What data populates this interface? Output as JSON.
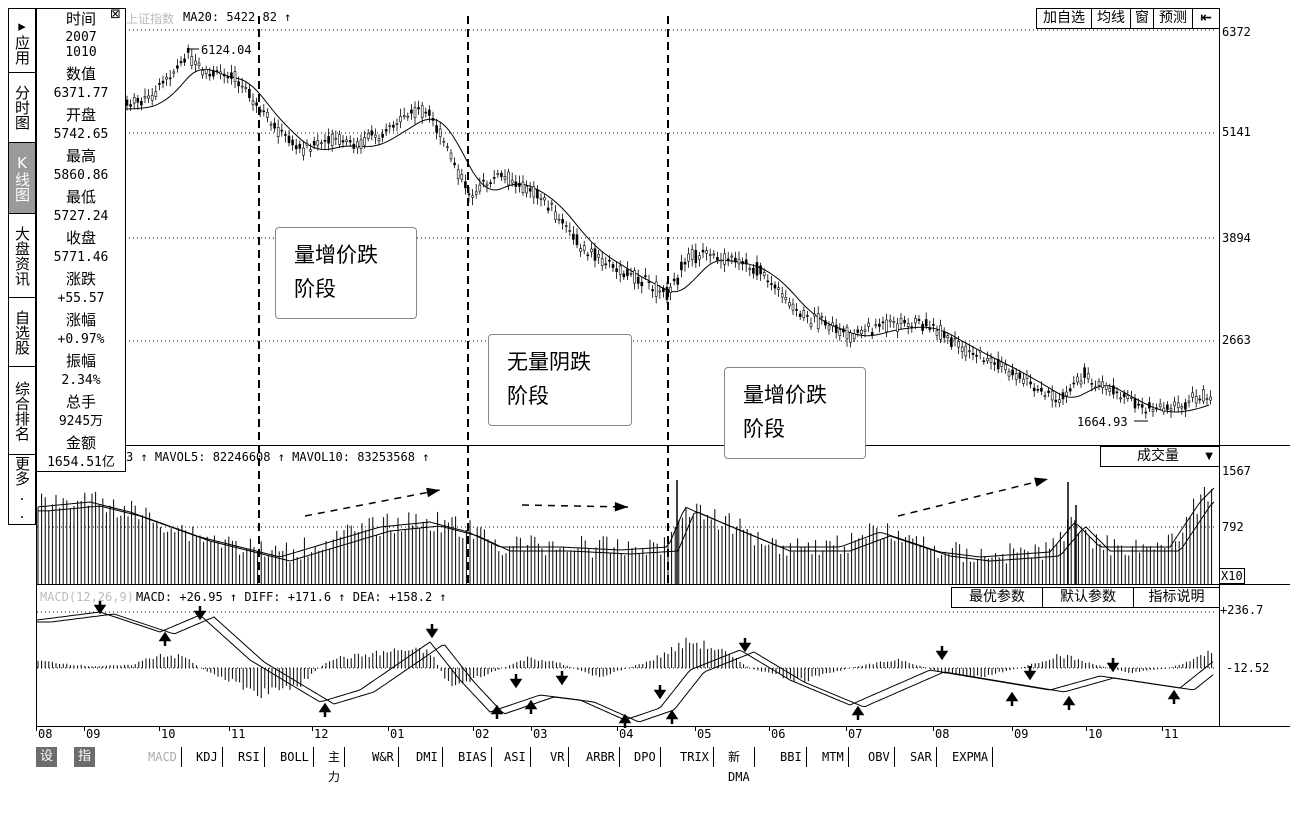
{
  "sidebar": {
    "items": [
      {
        "label": "▸应用",
        "active": false
      },
      {
        "label": "分时图",
        "active": false
      },
      {
        "label": "K线图",
        "active": true
      },
      {
        "label": "大盘资讯",
        "active": false
      },
      {
        "label": "自选股",
        "active": false
      },
      {
        "label": "综合排名",
        "active": false
      },
      {
        "label": "更多..",
        "active": false
      }
    ]
  },
  "info_panel": {
    "close_glyph": "⊠",
    "rows": [
      {
        "label": "时间",
        "value": "2007 1010"
      },
      {
        "label": "数值",
        "value": "6371.77"
      },
      {
        "label": "开盘",
        "value": "5742.65"
      },
      {
        "label": "最高",
        "value": "5860.86"
      },
      {
        "label": "最低",
        "value": "5727.24"
      },
      {
        "label": "收盘",
        "value": "5771.46"
      },
      {
        "label": "涨跌",
        "value": "+55.57"
      },
      {
        "label": "涨幅",
        "value": "+0.97%"
      },
      {
        "label": "振幅",
        "value": "2.34%"
      },
      {
        "label": "总手",
        "value": "9245万"
      },
      {
        "label": "金额",
        "value": "1654.51亿"
      }
    ]
  },
  "header": {
    "index_name": "上证指数",
    "ma_text": "MA20: 5422.82 ↑",
    "buttons": [
      "加自选",
      "均线",
      "窗",
      "预测",
      "⇤"
    ]
  },
  "price_axis": [
    "6372",
    "5141",
    "3894",
    "2663"
  ],
  "price_annotations": {
    "high": "6124.04",
    "low": "1664.93"
  },
  "notes": [
    {
      "line1": "量增价跌",
      "line2": "阶段"
    },
    {
      "line1": "无量阴跌",
      "line2": "阶段"
    },
    {
      "line1": "量增价跌",
      "line2": "阶段"
    }
  ],
  "volume": {
    "caption": "3 ↑  MAVOL5: 82246608 ↑  MAVOL10: 83253568 ↑",
    "selector": "成交量",
    "selector_arrow": "▼",
    "axis": [
      "1567",
      "792"
    ],
    "unit": "X10"
  },
  "macd": {
    "title": "MACD(12,26,9)",
    "caption": "MACD: +26.95 ↑  DIFF: +171.6 ↑  DEA: +158.2 ↑",
    "buttons": [
      "最优参数",
      "默认参数",
      "指标说明"
    ],
    "axis": [
      "+236.7",
      "-12.52"
    ]
  },
  "months": [
    "08",
    "09",
    "10",
    "11",
    "12",
    "01",
    "02",
    "03",
    "04",
    "05",
    "06",
    "07",
    "08",
    "09",
    "10",
    "11"
  ],
  "tabs": [
    "设置",
    "指标平台",
    "MACD",
    "KDJ",
    "RSI",
    "BOLL",
    "主力",
    "W&R",
    "DMI",
    "BIAS",
    "ASI",
    "VR",
    "ARBR",
    "DPO",
    "TRIX",
    "新DMA",
    "BBI",
    "MTM",
    "OBV",
    "SAR",
    "EXPMA"
  ],
  "colors": {
    "line": "#000000",
    "grid": "#000000",
    "selected_tab": "#aaaaaa",
    "sidebar_active": "#9a9a9a"
  }
}
